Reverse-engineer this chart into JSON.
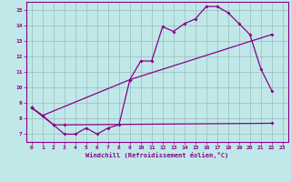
{
  "xlabel": "Windchill (Refroidissement éolien,°C)",
  "xlim": [
    -0.5,
    23.5
  ],
  "ylim": [
    6.5,
    15.5
  ],
  "yticks": [
    7,
    8,
    9,
    10,
    11,
    12,
    13,
    14,
    15
  ],
  "xticks": [
    0,
    1,
    2,
    3,
    4,
    5,
    6,
    7,
    8,
    9,
    10,
    11,
    12,
    13,
    14,
    15,
    16,
    17,
    18,
    19,
    20,
    21,
    22,
    23
  ],
  "background_color": "#c0e8e8",
  "line_color": "#880088",
  "grid_color": "#99bbbb",
  "line1_x": [
    0,
    1,
    2,
    3,
    4,
    5,
    6,
    7,
    8,
    9,
    10,
    11,
    12,
    13,
    14,
    15,
    16,
    17,
    18,
    19,
    20,
    21,
    22
  ],
  "line1_y": [
    8.7,
    8.2,
    7.6,
    7.0,
    7.0,
    7.4,
    7.0,
    7.4,
    7.6,
    10.5,
    11.7,
    11.7,
    13.9,
    13.6,
    14.1,
    14.4,
    15.2,
    15.2,
    14.8,
    14.1,
    13.4,
    11.2,
    9.8
  ],
  "line2_x": [
    0,
    2,
    3,
    22
  ],
  "line2_y": [
    8.7,
    7.6,
    7.6,
    7.7
  ],
  "line3_x": [
    0,
    1,
    9,
    22
  ],
  "line3_y": [
    8.7,
    8.2,
    10.5,
    13.4
  ]
}
